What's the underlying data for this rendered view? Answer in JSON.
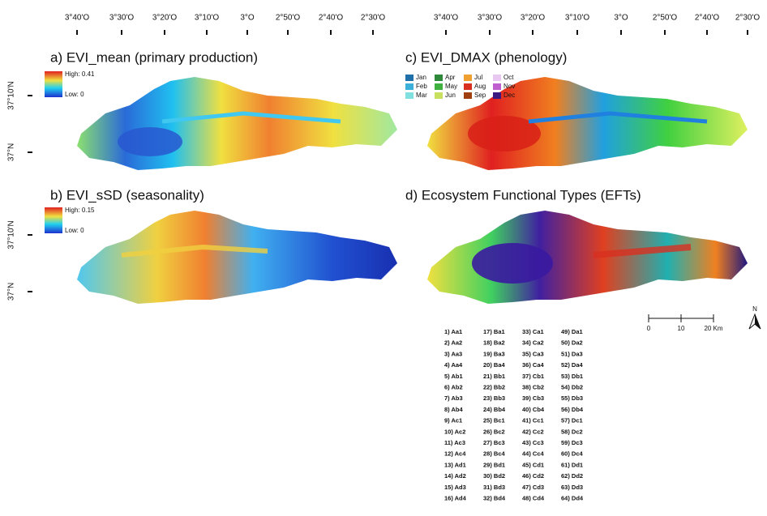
{
  "lon_labels": [
    "3°40'O",
    "3°30'O",
    "3°20'O",
    "3°10'O",
    "3°O",
    "2°50'O",
    "2°40'O",
    "2°30'O"
  ],
  "lat_labels": [
    "37°10'N",
    "37°N"
  ],
  "panels": [
    {
      "title": "a) EVI_mean (primary production)",
      "legend_high": "High: 0.41",
      "legend_low": "Low: 0"
    },
    {
      "title": "b) EVI_sSD (seasonality)",
      "legend_high": "High: 0.15",
      "legend_low": "Low: 0"
    },
    {
      "title": "c) EVI_DMAX (phenology)",
      "months": [
        "Jan",
        "Feb",
        "Mar",
        "Apr",
        "May",
        "Jun",
        "Jul",
        "Aug",
        "Sep",
        "Oct",
        "Nov",
        "Dec"
      ]
    },
    {
      "title": "d) Ecosystem Functional Types (EFTs)"
    }
  ],
  "scale_bar": [
    "0",
    "10",
    "20 Km"
  ],
  "north": "N",
  "eft_classes": [
    "1) Aa1",
    "2) Aa2",
    "3) Aa3",
    "4) Aa4",
    "5) Ab1",
    "6) Ab2",
    "7) Ab3",
    "8) Ab4",
    "9) Ac1",
    "10) Ac2",
    "11) Ac3",
    "12) Ac4",
    "13) Ad1",
    "14) Ad2",
    "15) Ad3",
    "16) Ad4",
    "17) Ba1",
    "18) Ba2",
    "19) Ba3",
    "20) Ba4",
    "21) Bb1",
    "22) Bb2",
    "23) Bb3",
    "24) Bb4",
    "25) Bc1",
    "26) Bc2",
    "27) Bc3",
    "28) Bc4",
    "29) Bd1",
    "30) Bd2",
    "31) Bd3",
    "32) Bd4",
    "33) Ca1",
    "34) Ca2",
    "35) Ca3",
    "36) Ca4",
    "37) Cb1",
    "38) Cb2",
    "39) Cb3",
    "40) Cb4",
    "41) Cc1",
    "42) Cc2",
    "43) Cc3",
    "44) Cc4",
    "45) Cd1",
    "46) Cd2",
    "47) Cd3",
    "48) Cd4",
    "49) Da1",
    "50) Da2",
    "51) Da3",
    "52) Da4",
    "53) Db1",
    "54) Db2",
    "55) Db3",
    "56) Db4",
    "57) Dc1",
    "58) Dc2",
    "59) Dc3",
    "60) Dc4",
    "61) Dd1",
    "62) Dd2",
    "63) Dd3",
    "64) Dd4"
  ]
}
